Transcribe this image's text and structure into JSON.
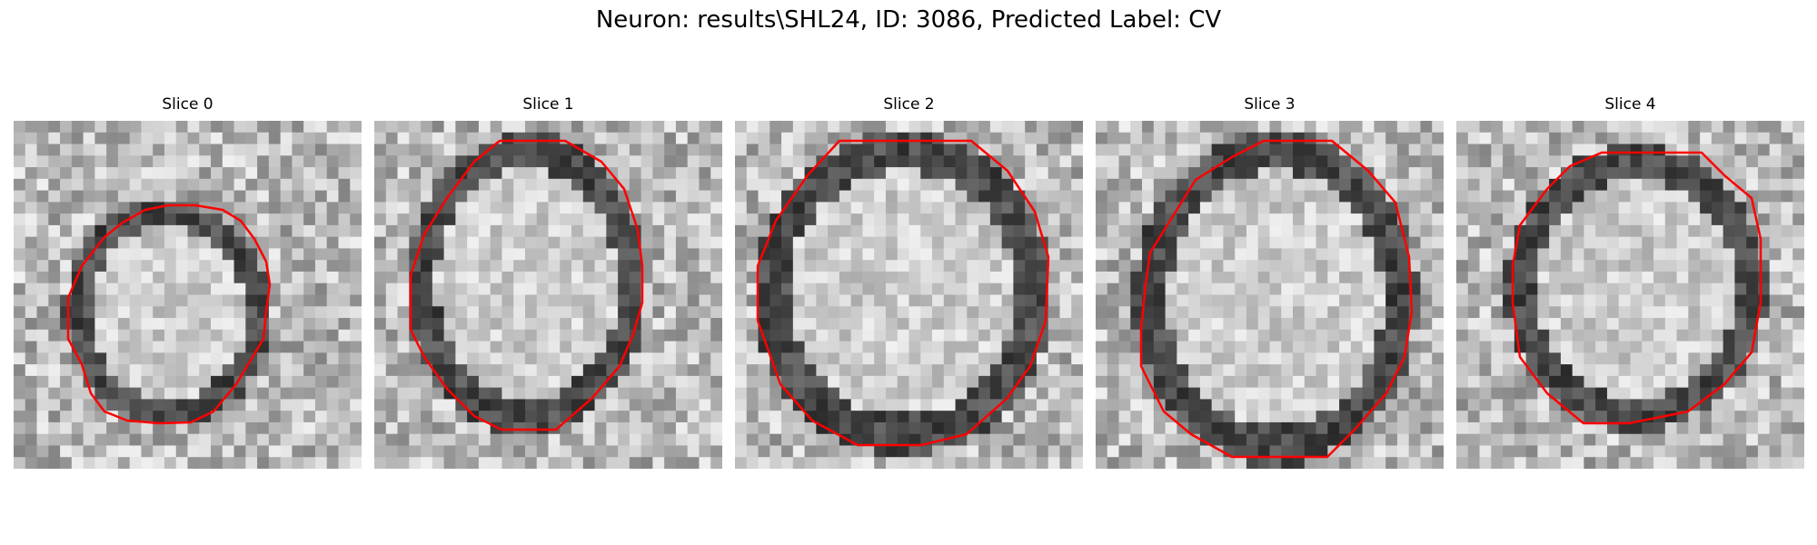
{
  "figure": {
    "title": "Neuron: results\\SHL24, ID: 3086, Predicted Label: CV"
  },
  "panels": [
    {
      "title": "Slice 0"
    },
    {
      "title": "Slice 1"
    },
    {
      "title": "Slice 2"
    },
    {
      "title": "Slice 3"
    },
    {
      "title": "Slice 4"
    }
  ],
  "colors": {
    "contour": "#ff0000",
    "background": "#ffffff"
  }
}
